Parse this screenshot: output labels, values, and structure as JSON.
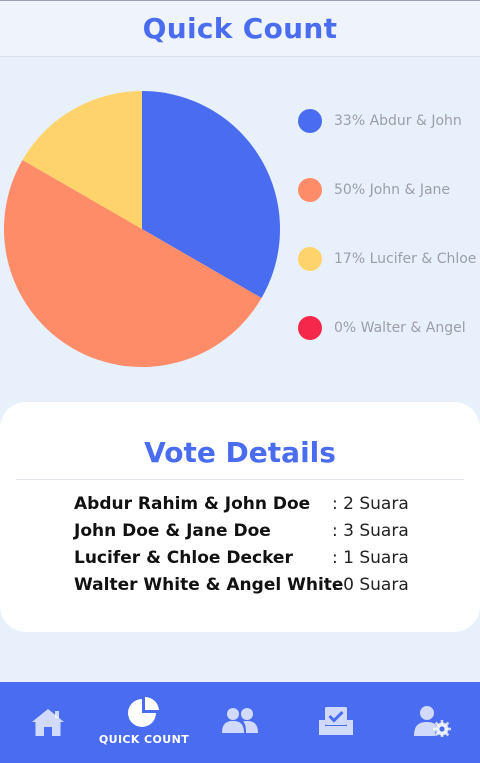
{
  "header": {
    "title": "Quick Count"
  },
  "chart_data": {
    "type": "pie",
    "title": "",
    "slices": [
      {
        "label": "Abdur & John",
        "percent": 33,
        "value": 2,
        "color": "#4a6cf0"
      },
      {
        "label": "John & Jane",
        "percent": 50,
        "value": 3,
        "color": "#ff8c69"
      },
      {
        "label": "Lucifer & Chloe",
        "percent": 17,
        "value": 1,
        "color": "#ffd36b"
      },
      {
        "label": "Walter & Angel",
        "percent": 0,
        "value": 0,
        "color": "#f5274a"
      }
    ],
    "legend_position": "right"
  },
  "legend": [
    {
      "text": "33% Abdur & John",
      "color": "#4a6cf0"
    },
    {
      "text": "50% John & Jane",
      "color": "#ff8c69"
    },
    {
      "text": "17% Lucifer & Chloe",
      "color": "#ffd36b"
    },
    {
      "text": "0% Walter & Angel",
      "color": "#f5274a"
    }
  ],
  "vote_details": {
    "title": "Vote Details",
    "rows": [
      {
        "name": "Abdur Rahim & John Doe",
        "count": ": 2 Suara"
      },
      {
        "name": "John Doe & Jane Doe",
        "count": ": 3 Suara"
      },
      {
        "name": "Lucifer & Chloe Decker",
        "count": ": 1 Suara"
      },
      {
        "name": "Walter White & Angel White",
        "count": ": 0 Suara"
      }
    ]
  },
  "bottom_nav": {
    "active": "quick-count",
    "items": [
      {
        "id": "home",
        "icon": "home-icon",
        "label": ""
      },
      {
        "id": "quick-count",
        "icon": "pie-chart-icon",
        "label": "QUICK COUNT"
      },
      {
        "id": "candidates",
        "icon": "users-icon",
        "label": ""
      },
      {
        "id": "vote",
        "icon": "ballot-box-icon",
        "label": ""
      },
      {
        "id": "settings",
        "icon": "user-settings-icon",
        "label": ""
      }
    ]
  },
  "colors": {
    "accent": "#4a6cf0",
    "background": "#e8f0fc",
    "card": "#ffffff"
  }
}
